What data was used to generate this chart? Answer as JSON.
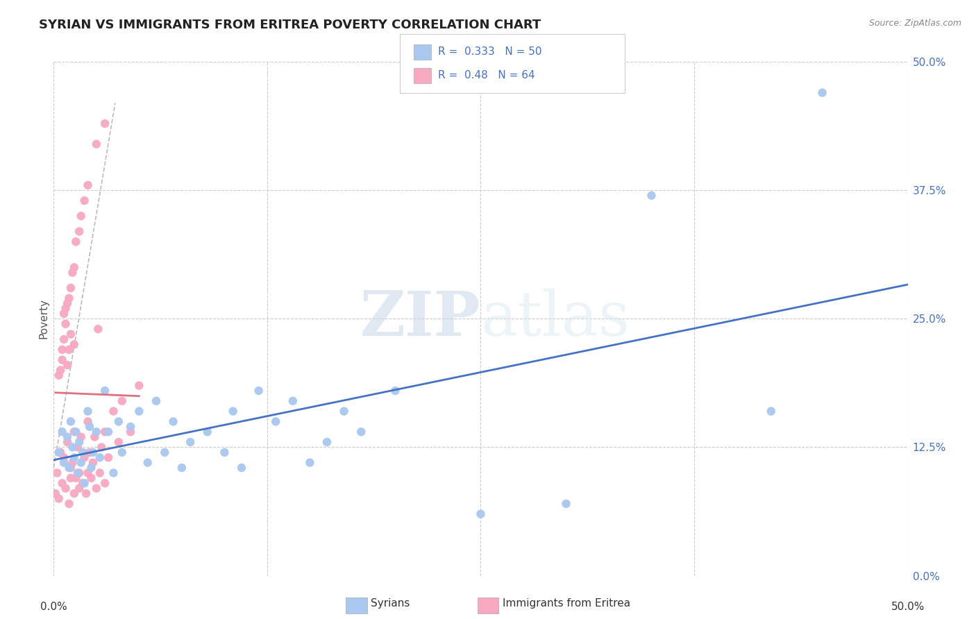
{
  "title": "SYRIAN VS IMMIGRANTS FROM ERITREA POVERTY CORRELATION CHART",
  "source": "Source: ZipAtlas.com",
  "ylabel": "Poverty",
  "ytick_values": [
    0.0,
    12.5,
    25.0,
    37.5,
    50.0
  ],
  "xlim": [
    0.0,
    50.0
  ],
  "ylim": [
    0.0,
    50.0
  ],
  "legend1_label": "Syrians",
  "legend2_label": "Immigrants from Eritrea",
  "r_syrian": 0.333,
  "n_syrian": 50,
  "r_eritrea": 0.48,
  "n_eritrea": 64,
  "syrian_color": "#a8c8f0",
  "eritrea_color": "#f8a8c0",
  "syrian_line_color": "#4472c4",
  "eritrea_line_color": "#e07080",
  "watermark_zip": "ZIP",
  "watermark_atlas": "atlas",
  "background_color": "#ffffff",
  "syrian_points": [
    [
      0.3,
      12.0
    ],
    [
      0.5,
      14.0
    ],
    [
      0.6,
      11.0
    ],
    [
      0.8,
      13.5
    ],
    [
      0.9,
      10.5
    ],
    [
      1.0,
      15.0
    ],
    [
      1.1,
      12.5
    ],
    [
      1.2,
      11.5
    ],
    [
      1.3,
      14.0
    ],
    [
      1.4,
      10.0
    ],
    [
      1.5,
      13.0
    ],
    [
      1.6,
      11.0
    ],
    [
      1.7,
      12.0
    ],
    [
      1.8,
      9.0
    ],
    [
      2.0,
      16.0
    ],
    [
      2.1,
      14.5
    ],
    [
      2.2,
      10.5
    ],
    [
      2.3,
      12.0
    ],
    [
      2.5,
      14.0
    ],
    [
      2.7,
      11.5
    ],
    [
      3.0,
      18.0
    ],
    [
      3.2,
      14.0
    ],
    [
      3.5,
      10.0
    ],
    [
      3.8,
      15.0
    ],
    [
      4.0,
      12.0
    ],
    [
      4.5,
      14.5
    ],
    [
      5.0,
      16.0
    ],
    [
      5.5,
      11.0
    ],
    [
      6.0,
      17.0
    ],
    [
      6.5,
      12.0
    ],
    [
      7.0,
      15.0
    ],
    [
      7.5,
      10.5
    ],
    [
      8.0,
      13.0
    ],
    [
      9.0,
      14.0
    ],
    [
      10.0,
      12.0
    ],
    [
      10.5,
      16.0
    ],
    [
      11.0,
      10.5
    ],
    [
      12.0,
      18.0
    ],
    [
      13.0,
      15.0
    ],
    [
      14.0,
      17.0
    ],
    [
      15.0,
      11.0
    ],
    [
      16.0,
      13.0
    ],
    [
      17.0,
      16.0
    ],
    [
      18.0,
      14.0
    ],
    [
      20.0,
      18.0
    ],
    [
      25.0,
      6.0
    ],
    [
      30.0,
      7.0
    ],
    [
      35.0,
      37.0
    ],
    [
      42.0,
      16.0
    ],
    [
      45.0,
      47.0
    ]
  ],
  "eritrea_points": [
    [
      0.1,
      8.0
    ],
    [
      0.2,
      10.0
    ],
    [
      0.3,
      7.5
    ],
    [
      0.4,
      12.0
    ],
    [
      0.5,
      9.0
    ],
    [
      0.6,
      11.5
    ],
    [
      0.7,
      8.5
    ],
    [
      0.8,
      13.0
    ],
    [
      0.9,
      7.0
    ],
    [
      1.0,
      10.5
    ],
    [
      1.0,
      9.5
    ],
    [
      1.1,
      11.0
    ],
    [
      1.2,
      8.0
    ],
    [
      1.2,
      14.0
    ],
    [
      1.3,
      9.5
    ],
    [
      1.4,
      12.5
    ],
    [
      1.5,
      8.5
    ],
    [
      1.5,
      10.0
    ],
    [
      1.6,
      13.5
    ],
    [
      1.7,
      9.0
    ],
    [
      1.8,
      11.5
    ],
    [
      1.9,
      8.0
    ],
    [
      2.0,
      15.0
    ],
    [
      2.0,
      10.0
    ],
    [
      2.1,
      12.0
    ],
    [
      2.2,
      9.5
    ],
    [
      2.3,
      11.0
    ],
    [
      2.4,
      13.5
    ],
    [
      2.5,
      8.5
    ],
    [
      2.6,
      24.0
    ],
    [
      2.7,
      10.0
    ],
    [
      2.8,
      12.5
    ],
    [
      3.0,
      9.0
    ],
    [
      3.0,
      14.0
    ],
    [
      3.2,
      11.5
    ],
    [
      3.5,
      16.0
    ],
    [
      3.8,
      13.0
    ],
    [
      4.0,
      17.0
    ],
    [
      4.5,
      14.0
    ],
    [
      5.0,
      18.5
    ],
    [
      0.5,
      22.0
    ],
    [
      0.6,
      25.5
    ],
    [
      0.7,
      26.0
    ],
    [
      0.8,
      26.5
    ],
    [
      0.9,
      27.0
    ],
    [
      1.0,
      28.0
    ],
    [
      1.1,
      29.5
    ],
    [
      1.2,
      30.0
    ],
    [
      1.3,
      32.5
    ],
    [
      1.5,
      33.5
    ],
    [
      1.6,
      35.0
    ],
    [
      1.8,
      36.5
    ],
    [
      2.0,
      38.0
    ],
    [
      2.5,
      42.0
    ],
    [
      3.0,
      44.0
    ],
    [
      0.3,
      19.5
    ],
    [
      0.4,
      20.0
    ],
    [
      0.5,
      21.0
    ],
    [
      0.6,
      23.0
    ],
    [
      0.7,
      24.5
    ],
    [
      0.8,
      20.5
    ],
    [
      0.9,
      22.0
    ],
    [
      1.0,
      23.5
    ],
    [
      1.2,
      22.5
    ]
  ],
  "dash_line": [
    [
      0.0,
      10.5
    ],
    [
      3.6,
      46.0
    ]
  ]
}
